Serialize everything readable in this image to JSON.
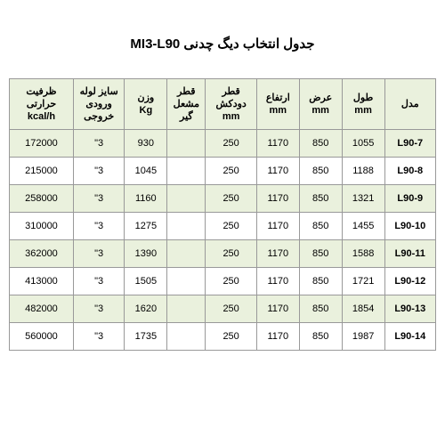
{
  "title": "جدول انتخاب دیگ چدنی MI3-L90",
  "columns": {
    "model": "مدل",
    "length": "طول\nmm",
    "width": "عرض\nmm",
    "height": "ارتفاع\nmm",
    "chimney": "قطر دودکش\nmm",
    "burner": "قطر مشعل گیر",
    "weight": "وزن\nKg",
    "pipe": "سایز لوله ورودی خروجی",
    "capacity": "ظرفیت حرارتی\nkcal/h"
  },
  "rows": [
    {
      "model": "L90-7",
      "length": "1055",
      "width": "850",
      "height": "1170",
      "chimney": "250",
      "burner": "",
      "weight": "930",
      "pipe": "3\"",
      "capacity": "172000"
    },
    {
      "model": "L90-8",
      "length": "1188",
      "width": "850",
      "height": "1170",
      "chimney": "250",
      "burner": "",
      "weight": "1045",
      "pipe": "3\"",
      "capacity": "215000"
    },
    {
      "model": "L90-9",
      "length": "1321",
      "width": "850",
      "height": "1170",
      "chimney": "250",
      "burner": "",
      "weight": "1160",
      "pipe": "3\"",
      "capacity": "258000"
    },
    {
      "model": "L90-10",
      "length": "1455",
      "width": "850",
      "height": "1170",
      "chimney": "250",
      "burner": "",
      "weight": "1275",
      "pipe": "3\"",
      "capacity": "310000"
    },
    {
      "model": "L90-11",
      "length": "1588",
      "width": "850",
      "height": "1170",
      "chimney": "250",
      "burner": "",
      "weight": "1390",
      "pipe": "3\"",
      "capacity": "362000"
    },
    {
      "model": "L90-12",
      "length": "1721",
      "width": "850",
      "height": "1170",
      "chimney": "250",
      "burner": "",
      "weight": "1505",
      "pipe": "3\"",
      "capacity": "413000"
    },
    {
      "model": "L90-13",
      "length": "1854",
      "width": "850",
      "height": "1170",
      "chimney": "250",
      "burner": "",
      "weight": "1620",
      "pipe": "3\"",
      "capacity": "482000"
    },
    {
      "model": "L90-14",
      "length": "1987",
      "width": "850",
      "height": "1170",
      "chimney": "250",
      "burner": "",
      "weight": "1735",
      "pipe": "3\"",
      "capacity": "560000"
    }
  ],
  "styling": {
    "header_bg": "#eaf1dd",
    "odd_row_bg": "#eaf1dd",
    "even_row_bg": "#ffffff",
    "border_color": "#999999",
    "title_fontsize": 15,
    "cell_fontsize": 11
  }
}
